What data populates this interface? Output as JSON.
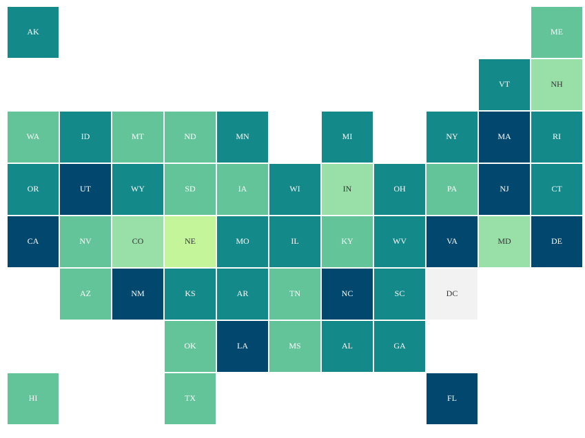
{
  "tiles": [
    {
      "label": "AK",
      "color": "#13898a"
    },
    {
      "label": "ME",
      "color": "#63c49a"
    },
    {
      "label": "VT",
      "color": "#13898a"
    },
    {
      "label": "NH",
      "color": "#98e0a8"
    },
    {
      "label": "WA",
      "color": "#63c49a"
    },
    {
      "label": "ID",
      "color": "#13898a"
    },
    {
      "label": "MT",
      "color": "#63c49a"
    },
    {
      "label": "ND",
      "color": "#63c49a"
    },
    {
      "label": "MN",
      "color": "#13898a"
    },
    {
      "label": "MI",
      "color": "#13898a"
    },
    {
      "label": "NY",
      "color": "#13898a"
    },
    {
      "label": "MA",
      "color": "#02476e"
    },
    {
      "label": "RI",
      "color": "#13898a"
    },
    {
      "label": "OR",
      "color": "#13898a"
    },
    {
      "label": "UT",
      "color": "#02476e"
    },
    {
      "label": "WY",
      "color": "#13898a"
    },
    {
      "label": "SD",
      "color": "#63c49a"
    },
    {
      "label": "IA",
      "color": "#63c49a"
    },
    {
      "label": "WI",
      "color": "#13898a"
    },
    {
      "label": "IN",
      "color": "#98e0a8"
    },
    {
      "label": "OH",
      "color": "#13898a"
    },
    {
      "label": "PA",
      "color": "#63c49a"
    },
    {
      "label": "NJ",
      "color": "#02476e"
    },
    {
      "label": "CT",
      "color": "#13898a"
    },
    {
      "label": "CA",
      "color": "#02476e"
    },
    {
      "label": "NV",
      "color": "#63c49a"
    },
    {
      "label": "CO",
      "color": "#98e0a8"
    },
    {
      "label": "NE",
      "color": "#c4f59a"
    },
    {
      "label": "MO",
      "color": "#13898a"
    },
    {
      "label": "IL",
      "color": "#13898a"
    },
    {
      "label": "KY",
      "color": "#63c49a"
    },
    {
      "label": "WV",
      "color": "#13898a"
    },
    {
      "label": "VA",
      "color": "#02476e"
    },
    {
      "label": "MD",
      "color": "#98e0a8"
    },
    {
      "label": "DE",
      "color": "#02476e"
    },
    {
      "label": "AZ",
      "color": "#63c49a"
    },
    {
      "label": "NM",
      "color": "#02476e"
    },
    {
      "label": "KS",
      "color": "#13898a"
    },
    {
      "label": "AR",
      "color": "#13898a"
    },
    {
      "label": "TN",
      "color": "#63c49a"
    },
    {
      "label": "NC",
      "color": "#02476e"
    },
    {
      "label": "SC",
      "color": "#13898a"
    },
    {
      "label": "DC",
      "color": "#f2f2f2"
    },
    {
      "label": "OK",
      "color": "#63c49a"
    },
    {
      "label": "LA",
      "color": "#02476e"
    },
    {
      "label": "MS",
      "color": "#63c49a"
    },
    {
      "label": "AL",
      "color": "#13898a"
    },
    {
      "label": "GA",
      "color": "#13898a"
    },
    {
      "label": "HI",
      "color": "#63c49a"
    },
    {
      "label": "TX",
      "color": "#63c49a"
    },
    {
      "label": "FL",
      "color": "#02476e"
    }
  ]
}
